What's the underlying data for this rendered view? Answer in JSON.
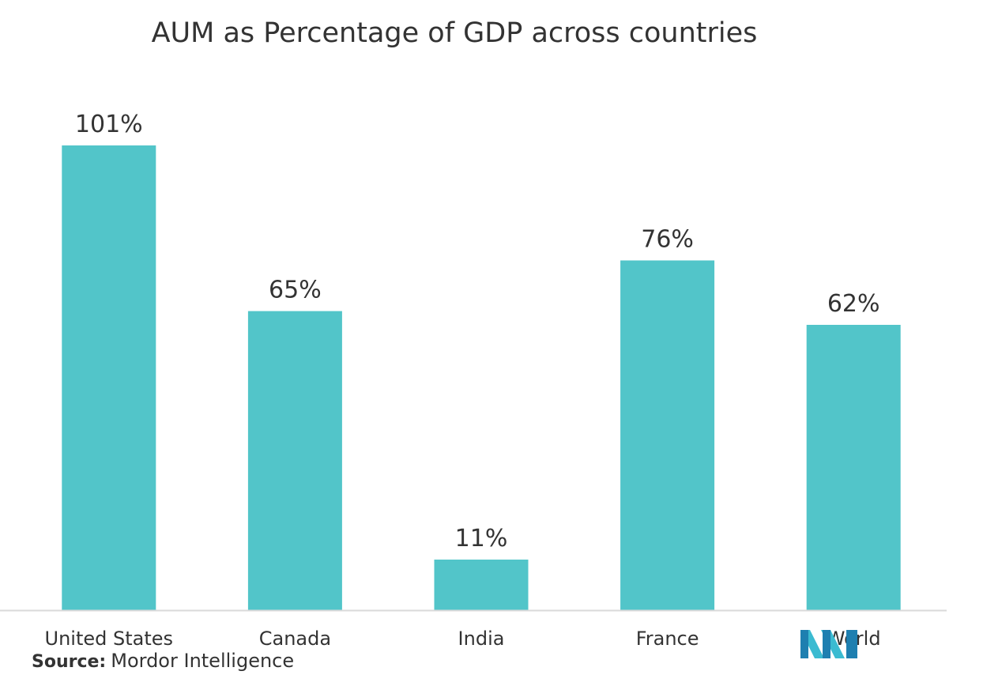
{
  "chart_data": {
    "type": "bar",
    "title": "AUM as Percentage of GDP across countries",
    "categories": [
      "United States",
      "Canada",
      "India",
      "France",
      "World"
    ],
    "values": [
      101,
      65,
      11,
      76,
      62
    ],
    "data_labels": [
      "101%",
      "65%",
      "11%",
      "76%",
      "62%"
    ],
    "unit": "%",
    "xlabel": "",
    "ylabel": "",
    "ylim": [
      0,
      101
    ],
    "grid": false,
    "legend": "none",
    "bar_color": "#52c5c9",
    "axis_color": "#d9d9d9"
  },
  "source": {
    "label": "Source:",
    "text": "Mordor Intelligence"
  },
  "logo": {
    "icon": "mordor-intelligence-logo",
    "colors": [
      "#1e7fb0",
      "#3bbbd1",
      "#8fd8e0"
    ]
  }
}
